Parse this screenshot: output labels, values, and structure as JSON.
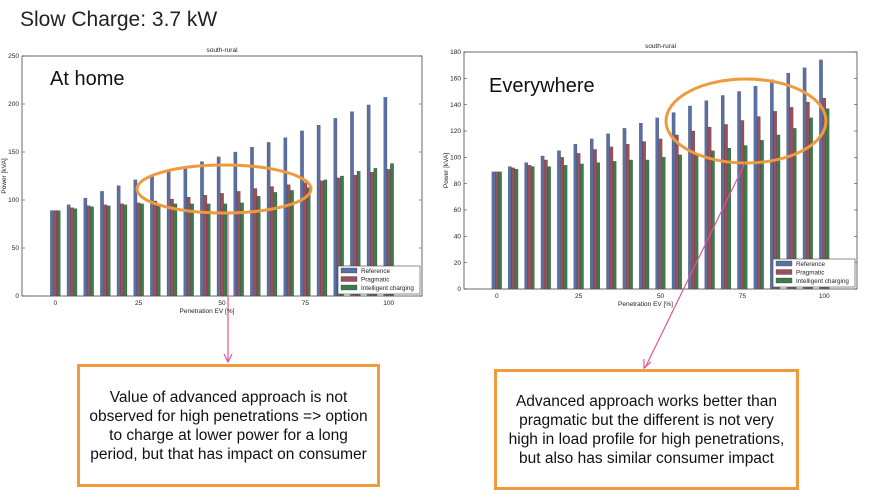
{
  "slide": {
    "title": "Slow Charge: 3.7 kW"
  },
  "colors": {
    "reference": "#5a6fa3",
    "pragmatic": "#9a4f5c",
    "intelligent": "#3f7a4c",
    "highlight": "#ef9a3c",
    "arrow": "#e0559a"
  },
  "chart_data": [
    {
      "type": "bar",
      "title": "south-rural",
      "annotation": "At home",
      "xlabel": "Penetration EV [%]",
      "ylabel": "Power [kVA]",
      "ylim": [
        0,
        250
      ],
      "xlim": [
        -10,
        110
      ],
      "xticks": [
        "0",
        "25",
        "50",
        "75",
        "100"
      ],
      "yticks": [
        "0",
        "50",
        "100",
        "150",
        "200",
        "250"
      ],
      "legend_position": "bottom-right",
      "x": [
        0,
        5,
        10,
        15,
        20,
        25,
        30,
        35,
        40,
        45,
        50,
        55,
        60,
        65,
        70,
        75,
        80,
        85,
        90,
        95,
        100
      ],
      "series": [
        {
          "name": "Reference",
          "values": [
            89,
            95,
            102,
            109,
            115,
            121,
            126,
            130,
            135,
            140,
            145,
            150,
            155,
            160,
            165,
            172,
            178,
            185,
            192,
            199,
            207
          ]
        },
        {
          "name": "Pragmatic",
          "values": [
            89,
            92,
            94,
            95,
            96,
            97,
            99,
            101,
            103,
            105,
            107,
            109,
            112,
            114,
            116,
            118,
            120,
            123,
            126,
            129,
            132
          ]
        },
        {
          "name": "Intelligent charging",
          "values": [
            89,
            91,
            93,
            94,
            95,
            96,
            96,
            96,
            96,
            96,
            96,
            97,
            104,
            108,
            110,
            113,
            121,
            125,
            130,
            133,
            138
          ]
        }
      ]
    },
    {
      "type": "bar",
      "title": "south-rural",
      "annotation": "Everywhere",
      "xlabel": "Penetration EV [%]",
      "ylabel": "Power [kVA]",
      "ylim": [
        0,
        180
      ],
      "xlim": [
        -10,
        110
      ],
      "xticks": [
        "0",
        "25",
        "50",
        "75",
        "100"
      ],
      "yticks": [
        "0",
        "20",
        "40",
        "60",
        "80",
        "100",
        "120",
        "140",
        "160",
        "180"
      ],
      "legend_position": "bottom-right",
      "x": [
        0,
        5,
        10,
        15,
        20,
        25,
        30,
        35,
        40,
        45,
        50,
        55,
        60,
        65,
        70,
        75,
        80,
        85,
        90,
        95,
        100
      ],
      "series": [
        {
          "name": "Reference",
          "values": [
            89,
            93,
            96,
            101,
            105,
            110,
            114,
            118,
            122,
            126,
            130,
            134,
            139,
            143,
            147,
            150,
            154,
            159,
            164,
            168,
            174
          ]
        },
        {
          "name": "Pragmatic",
          "values": [
            89,
            92,
            94,
            98,
            100,
            103,
            106,
            108,
            110,
            112,
            114,
            117,
            120,
            123,
            125,
            128,
            131,
            135,
            138,
            142,
            145
          ]
        },
        {
          "name": "Intelligent charging",
          "values": [
            89,
            91,
            93,
            93,
            94,
            95,
            96,
            97,
            98,
            98,
            100,
            102,
            103,
            105,
            107,
            109,
            113,
            117,
            122,
            130,
            137
          ]
        }
      ]
    }
  ],
  "callouts": {
    "left": "Value of advanced approach is not observed for high penetrations => option to charge at lower power for a long period, but that has impact on consumer",
    "right": "Advanced approach works better than pragmatic but the different is not very high in load profile for high penetrations, but also has similar consumer impact"
  }
}
